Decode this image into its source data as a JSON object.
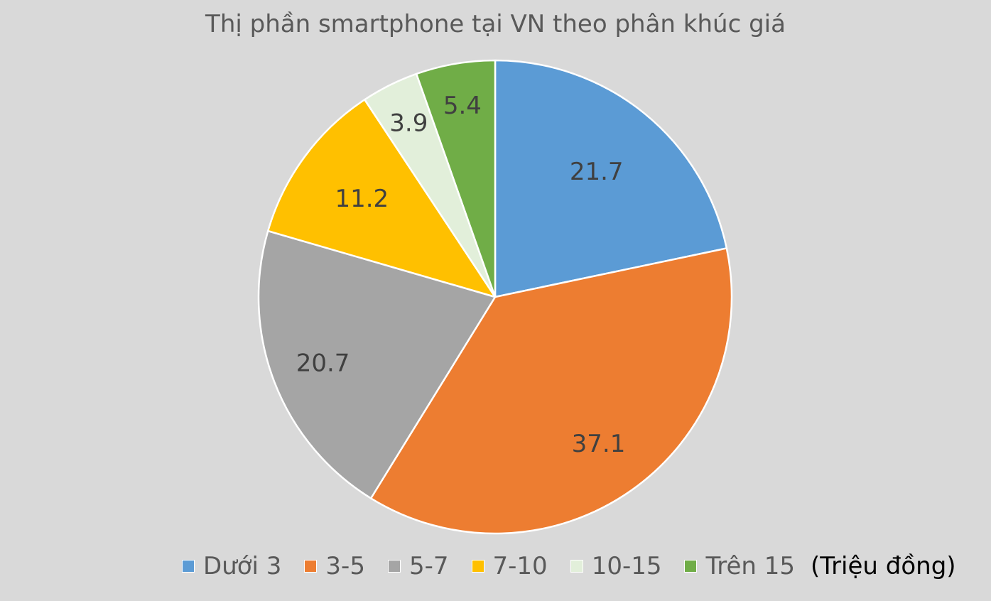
{
  "chart_data": {
    "type": "pie",
    "title": "Thị phần smartphone tại VN theo phân khúc giá",
    "categories": [
      "Dưới 3",
      "3-5",
      "5-7",
      "7-10",
      "10-15",
      "Trên 15"
    ],
    "values": [
      21.7,
      37.1,
      20.7,
      11.2,
      3.9,
      5.4
    ],
    "data_labels": [
      "21.7",
      "37.1",
      "20.7",
      "11.2",
      "3.9",
      "5.4"
    ],
    "colors": [
      "#5b9bd5",
      "#ed7d31",
      "#a5a5a5",
      "#ffc000",
      "#e2efda",
      "#70ad47"
    ],
    "legend_placement": "bottom",
    "legend_unit": "(Triệu đồng)"
  }
}
